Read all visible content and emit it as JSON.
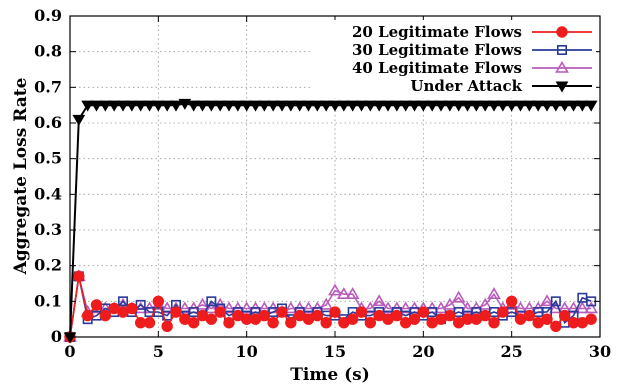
{
  "chart_data": {
    "type": "line",
    "xlabel": "Time (s)",
    "ylabel": "Aggregate Loss Rate",
    "xlim": [
      0,
      30
    ],
    "ylim": [
      0,
      0.9
    ],
    "xticks": [
      "0",
      "5",
      "10",
      "15",
      "20",
      "25",
      "30"
    ],
    "yticks": [
      "0",
      "0.1",
      "0.2",
      "0.3",
      "0.4",
      "0.5",
      "0.6",
      "0.7",
      "0.8",
      "0.9"
    ],
    "grid": true,
    "legend_position": "top-right",
    "series": [
      {
        "name": "20 Legitimate Flows",
        "color": "#ee1c1c",
        "marker": "circle",
        "x": [
          0,
          0.5,
          1,
          1.5,
          2,
          2.5,
          3,
          3.5,
          4,
          4.5,
          5,
          5.5,
          6,
          6.5,
          7,
          7.5,
          8,
          8.5,
          9,
          9.5,
          10,
          10.5,
          11,
          11.5,
          12,
          12.5,
          13,
          13.5,
          14,
          14.5,
          15,
          15.5,
          16,
          16.5,
          17,
          17.5,
          18,
          18.5,
          19,
          19.5,
          20,
          20.5,
          21,
          21.5,
          22,
          22.5,
          23,
          23.5,
          24,
          24.5,
          25,
          25.5,
          26,
          26.5,
          27,
          27.5,
          28,
          28.5,
          29,
          29.5
        ],
        "y": [
          0,
          0.17,
          0.06,
          0.09,
          0.06,
          0.08,
          0.07,
          0.08,
          0.04,
          0.04,
          0.1,
          0.03,
          0.07,
          0.05,
          0.04,
          0.06,
          0.05,
          0.07,
          0.04,
          0.06,
          0.05,
          0.05,
          0.06,
          0.04,
          0.07,
          0.04,
          0.06,
          0.05,
          0.06,
          0.04,
          0.07,
          0.04,
          0.05,
          0.07,
          0.04,
          0.06,
          0.05,
          0.06,
          0.04,
          0.05,
          0.07,
          0.04,
          0.05,
          0.06,
          0.04,
          0.05,
          0.05,
          0.06,
          0.04,
          0.07,
          0.1,
          0.05,
          0.06,
          0.04,
          0.05,
          0.03,
          0.06,
          0.04,
          0.04,
          0.05
        ]
      },
      {
        "name": "30 Legitimate Flows",
        "color": "#2a3a9a",
        "marker": "square",
        "x": [
          0,
          0.5,
          1,
          1.5,
          2,
          2.5,
          3,
          3.5,
          4,
          4.5,
          5,
          5.5,
          6,
          6.5,
          7,
          7.5,
          8,
          8.5,
          9,
          9.5,
          10,
          10.5,
          11,
          11.5,
          12,
          12.5,
          13,
          13.5,
          14,
          14.5,
          15,
          15.5,
          16,
          16.5,
          17,
          17.5,
          18,
          18.5,
          19,
          19.5,
          20,
          20.5,
          21,
          21.5,
          22,
          22.5,
          23,
          23.5,
          24,
          24.5,
          25,
          25.5,
          26,
          26.5,
          27,
          27.5,
          28,
          28.5,
          29,
          29.5
        ],
        "y": [
          0,
          0.17,
          0.05,
          0.06,
          0.08,
          0.07,
          0.1,
          0.07,
          0.09,
          0.07,
          0.07,
          0.06,
          0.09,
          0.06,
          0.07,
          0.06,
          0.1,
          0.08,
          0.06,
          0.07,
          0.06,
          0.07,
          0.06,
          0.07,
          0.08,
          0.05,
          0.07,
          0.06,
          0.07,
          0.06,
          0.06,
          0.05,
          0.07,
          0.06,
          0.06,
          0.07,
          0.06,
          0.07,
          0.06,
          0.07,
          0.06,
          0.07,
          0.05,
          0.06,
          0.07,
          0.06,
          0.07,
          0.06,
          0.07,
          0.06,
          0.07,
          0.06,
          0.06,
          0.07,
          0.07,
          0.1,
          0.04,
          0.06,
          0.11,
          0.1
        ]
      },
      {
        "name": "40 Legitimate Flows",
        "color": "#b95cbb",
        "marker": "triangle-up",
        "x": [
          0,
          0.5,
          1,
          1.5,
          2,
          2.5,
          3,
          3.5,
          4,
          4.5,
          5,
          5.5,
          6,
          6.5,
          7,
          7.5,
          8,
          8.5,
          9,
          9.5,
          10,
          10.5,
          11,
          11.5,
          12,
          12.5,
          13,
          13.5,
          14,
          14.5,
          15,
          15.5,
          16,
          16.5,
          17,
          17.5,
          18,
          18.5,
          19,
          19.5,
          20,
          20.5,
          21,
          21.5,
          22,
          22.5,
          23,
          23.5,
          24,
          24.5,
          25,
          25.5,
          26,
          26.5,
          27,
          27.5,
          28,
          28.5,
          29,
          29.5
        ],
        "y": [
          0,
          0.17,
          0.07,
          0.08,
          0.08,
          0.08,
          0.09,
          0.08,
          0.08,
          0.08,
          0.09,
          0.08,
          0.08,
          0.08,
          0.08,
          0.09,
          0.08,
          0.09,
          0.08,
          0.08,
          0.08,
          0.08,
          0.08,
          0.08,
          0.07,
          0.08,
          0.08,
          0.08,
          0.08,
          0.09,
          0.13,
          0.12,
          0.12,
          0.08,
          0.08,
          0.1,
          0.08,
          0.08,
          0.08,
          0.08,
          0.08,
          0.08,
          0.08,
          0.09,
          0.11,
          0.08,
          0.08,
          0.09,
          0.12,
          0.08,
          0.09,
          0.08,
          0.08,
          0.08,
          0.1,
          0.08,
          0.08,
          0.08,
          0.08,
          0.08
        ]
      },
      {
        "name": "Under Attack",
        "color": "#000000",
        "marker": "triangle-down",
        "x": [
          0,
          0.5,
          1,
          1.5,
          2,
          2.5,
          3,
          3.5,
          4,
          4.5,
          5,
          5.5,
          6,
          6.5,
          7,
          7.5,
          8,
          8.5,
          9,
          9.5,
          10,
          10.5,
          11,
          11.5,
          12,
          12.5,
          13,
          13.5,
          14,
          14.5,
          15,
          15.5,
          16,
          16.5,
          17,
          17.5,
          18,
          18.5,
          19,
          19.5,
          20,
          20.5,
          21,
          21.5,
          22,
          22.5,
          23,
          23.5,
          24,
          24.5,
          25,
          25.5,
          26,
          26.5,
          27,
          27.5,
          28,
          28.5,
          29,
          29.5
        ],
        "y": [
          0,
          0.61,
          0.65,
          0.65,
          0.65,
          0.65,
          0.65,
          0.65,
          0.65,
          0.65,
          0.65,
          0.65,
          0.65,
          0.655,
          0.65,
          0.65,
          0.65,
          0.65,
          0.65,
          0.65,
          0.65,
          0.65,
          0.65,
          0.65,
          0.65,
          0.65,
          0.65,
          0.65,
          0.65,
          0.65,
          0.65,
          0.65,
          0.65,
          0.65,
          0.65,
          0.65,
          0.65,
          0.65,
          0.65,
          0.65,
          0.65,
          0.65,
          0.65,
          0.65,
          0.65,
          0.65,
          0.65,
          0.65,
          0.65,
          0.65,
          0.65,
          0.65,
          0.65,
          0.65,
          0.65,
          0.65,
          0.65,
          0.65,
          0.65,
          0.65
        ]
      }
    ]
  }
}
